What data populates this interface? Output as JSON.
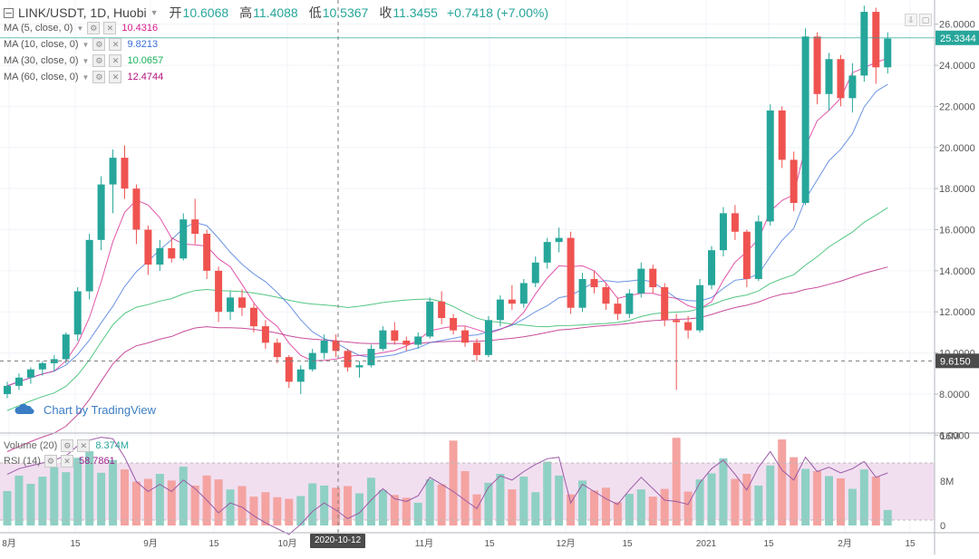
{
  "header": {
    "symbol": "LINK/USDT, 1D, Huobi",
    "open_label": "开",
    "open": "10.6068",
    "high_label": "高",
    "high": "11.4088",
    "low_label": "低",
    "low": "10.5367",
    "close_label": "收",
    "close": "11.3455",
    "change": "+0.7418 (+7.00%)"
  },
  "ma_legend": [
    {
      "label": "MA (5, close, 0)",
      "value": "10.4316",
      "color": "#d81b8c"
    },
    {
      "label": "MA (10, close, 0)",
      "value": "9.8213",
      "color": "#3a6fd8"
    },
    {
      "label": "MA (30, close, 0)",
      "value": "10.0657",
      "color": "#18b35a"
    },
    {
      "label": "MA (60, close, 0)",
      "value": "12.4744",
      "color": "#b5127a"
    }
  ],
  "volume_legend": {
    "label": "Volume (20)",
    "value": "8.374M",
    "color": "#26a69a"
  },
  "rsi_legend": {
    "label": "RSI (14)",
    "value": "58.7861",
    "color": "#9b1e8c"
  },
  "watermark": "Chart by TradingView",
  "crosshair_date": "2020-10-12",
  "last_price_label": "25.3344",
  "crosshair_price_label": "9.6150",
  "price_axis_ticks": [
    "26.0000",
    "24.0000",
    "22.0000",
    "20.0000",
    "18.0000",
    "16.0000",
    "14.0000",
    "12.0000",
    "10.0000",
    "8.0000",
    "6.0000"
  ],
  "volume_axis_ticks": [
    "16M",
    "8M",
    "0"
  ],
  "time_axis_ticks": [
    "8月",
    "15",
    "9月",
    "15",
    "10月",
    "11月",
    "15",
    "12月",
    "15",
    "2021",
    "15",
    "2月",
    "15"
  ],
  "colors": {
    "up": "#26a69a",
    "down": "#ef5350",
    "up_vol": "#8fd0c4",
    "down_vol": "#f4a3a1",
    "rsi_band": "#f1dff0",
    "grid": "#f0f3fa"
  },
  "chart_data": {
    "type": "candlestick",
    "title": "LINK/USDT, 1D, Huobi",
    "x_start_date": "2020-07-28",
    "x_interval_days": 3,
    "ylim": [
      5.0,
      27.0
    ],
    "y_scale": "linear",
    "ohlc": [
      [
        8.0,
        8.6,
        7.8,
        8.4
      ],
      [
        8.4,
        9.0,
        8.2,
        8.8
      ],
      [
        8.8,
        9.3,
        8.5,
        9.2
      ],
      [
        9.2,
        9.6,
        8.9,
        9.5
      ],
      [
        9.5,
        9.9,
        9.1,
        9.7
      ],
      [
        9.7,
        11.0,
        9.5,
        10.9
      ],
      [
        10.9,
        13.2,
        10.6,
        13.0
      ],
      [
        13.0,
        15.8,
        12.6,
        15.5
      ],
      [
        15.5,
        18.6,
        15.0,
        18.2
      ],
      [
        18.2,
        19.9,
        16.8,
        19.5
      ],
      [
        19.5,
        20.1,
        17.5,
        18.0
      ],
      [
        18.0,
        18.2,
        15.3,
        16.0
      ],
      [
        16.0,
        16.2,
        13.8,
        14.3
      ],
      [
        14.3,
        15.5,
        14.0,
        15.1
      ],
      [
        15.1,
        15.6,
        14.4,
        14.6
      ],
      [
        14.6,
        16.8,
        14.5,
        16.5
      ],
      [
        16.5,
        17.5,
        15.3,
        15.8
      ],
      [
        15.8,
        16.0,
        13.6,
        14.0
      ],
      [
        14.0,
        14.2,
        11.5,
        12.0
      ],
      [
        12.0,
        13.0,
        11.6,
        12.7
      ],
      [
        12.7,
        13.1,
        11.8,
        12.2
      ],
      [
        12.2,
        12.4,
        11.0,
        11.3
      ],
      [
        11.3,
        11.6,
        10.2,
        10.5
      ],
      [
        10.5,
        10.7,
        9.5,
        9.8
      ],
      [
        9.8,
        9.9,
        8.3,
        8.6
      ],
      [
        8.6,
        9.4,
        8.0,
        9.2
      ],
      [
        9.2,
        10.2,
        9.1,
        10.0
      ],
      [
        10.0,
        10.9,
        9.7,
        10.6
      ],
      [
        10.6,
        10.9,
        9.8,
        10.1
      ],
      [
        10.1,
        10.2,
        9.1,
        9.3
      ],
      [
        9.3,
        9.6,
        8.8,
        9.4
      ],
      [
        9.4,
        10.4,
        9.3,
        10.2
      ],
      [
        10.2,
        11.3,
        10.1,
        11.1
      ],
      [
        11.1,
        11.5,
        10.4,
        10.6
      ],
      [
        10.6,
        10.8,
        10.1,
        10.4
      ],
      [
        10.4,
        11.0,
        10.2,
        10.8
      ],
      [
        10.8,
        12.7,
        10.7,
        12.5
      ],
      [
        12.5,
        13.0,
        11.4,
        11.7
      ],
      [
        11.7,
        11.9,
        10.9,
        11.1
      ],
      [
        11.1,
        11.3,
        10.3,
        10.5
      ],
      [
        10.5,
        10.7,
        9.6,
        9.9
      ],
      [
        9.9,
        11.8,
        9.8,
        11.6
      ],
      [
        11.6,
        12.8,
        11.3,
        12.6
      ],
      [
        12.6,
        13.3,
        12.1,
        12.4
      ],
      [
        12.4,
        13.6,
        12.2,
        13.4
      ],
      [
        13.4,
        14.7,
        13.2,
        14.4
      ],
      [
        14.4,
        15.6,
        14.1,
        15.4
      ],
      [
        15.4,
        16.1,
        14.9,
        15.6
      ],
      [
        15.6,
        15.9,
        11.9,
        12.2
      ],
      [
        12.2,
        13.9,
        12.0,
        13.6
      ],
      [
        13.6,
        14.0,
        12.9,
        13.2
      ],
      [
        13.2,
        13.4,
        12.1,
        12.4
      ],
      [
        12.4,
        12.7,
        11.6,
        11.9
      ],
      [
        11.9,
        13.1,
        11.7,
        12.9
      ],
      [
        12.9,
        14.4,
        12.7,
        14.1
      ],
      [
        14.1,
        14.3,
        12.9,
        13.2
      ],
      [
        13.2,
        13.4,
        11.3,
        11.6
      ],
      [
        11.6,
        11.9,
        8.2,
        11.5
      ],
      [
        11.5,
        11.8,
        10.7,
        11.1
      ],
      [
        11.1,
        13.6,
        11.0,
        13.3
      ],
      [
        13.3,
        15.2,
        13.1,
        15.0
      ],
      [
        15.0,
        17.1,
        14.7,
        16.8
      ],
      [
        16.8,
        17.2,
        15.5,
        15.9
      ],
      [
        15.9,
        16.0,
        13.2,
        13.6
      ],
      [
        13.6,
        16.7,
        13.5,
        16.4
      ],
      [
        16.4,
        22.1,
        16.2,
        21.8
      ],
      [
        21.8,
        22.0,
        19.0,
        19.4
      ],
      [
        19.4,
        19.8,
        16.9,
        17.3
      ],
      [
        17.3,
        25.8,
        17.2,
        25.4
      ],
      [
        25.4,
        25.6,
        22.1,
        22.6
      ],
      [
        22.6,
        24.6,
        21.8,
        24.3
      ],
      [
        24.3,
        24.5,
        22.0,
        22.4
      ],
      [
        22.4,
        24.1,
        21.7,
        23.5
      ],
      [
        23.5,
        26.9,
        23.2,
        26.6
      ],
      [
        26.6,
        26.8,
        23.1,
        23.9
      ],
      [
        23.9,
        25.6,
        23.6,
        25.3
      ]
    ],
    "volume_m": [
      6.2,
      9.0,
      7.5,
      8.8,
      10.5,
      9.6,
      12.2,
      13.4,
      9.5,
      11.8,
      10.1,
      7.9,
      8.4,
      9.3,
      8.1,
      10.6,
      7.2,
      9.0,
      8.3,
      6.5,
      7.1,
      5.2,
      6.0,
      5.1,
      4.8,
      5.3,
      7.6,
      7.2,
      6.8,
      7.1,
      5.8,
      8.6,
      6.4,
      5.5,
      5.0,
      4.1,
      8.3,
      7.4,
      15.3,
      9.8,
      5.6,
      7.7,
      9.3,
      6.5,
      8.8,
      6.0,
      11.5,
      9.0,
      5.6,
      8.1,
      6.3,
      6.8,
      4.2,
      5.7,
      6.5,
      5.2,
      6.6,
      15.8,
      6.1,
      8.3,
      9.4,
      12.1,
      8.4,
      9.3,
      7.2,
      10.8,
      15.5,
      12.3,
      10.2,
      9.8,
      8.9,
      8.5,
      6.6,
      10.1,
      8.8,
      2.8
    ],
    "volume_ylim": [
      0,
      16
    ],
    "rsi": [
      62,
      66,
      68,
      70,
      72,
      75,
      82,
      86,
      88,
      87,
      74,
      57,
      50,
      55,
      50,
      58,
      52,
      44,
      35,
      42,
      39,
      33,
      28,
      24,
      20,
      27,
      36,
      42,
      37,
      31,
      35,
      44,
      52,
      45,
      43,
      47,
      60,
      55,
      50,
      44,
      38,
      53,
      61,
      58,
      64,
      69,
      73,
      74,
      42,
      55,
      50,
      45,
      41,
      51,
      60,
      52,
      44,
      43,
      41,
      56,
      66,
      72,
      62,
      51,
      67,
      78,
      65,
      58,
      74,
      64,
      67,
      63,
      66,
      71,
      60,
      63
    ],
    "rsi_band": [
      30,
      70
    ]
  }
}
